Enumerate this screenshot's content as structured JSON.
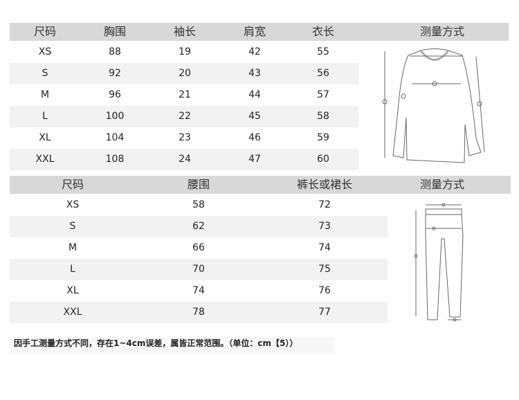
{
  "tops": {
    "headers": [
      "尺码",
      "胸围",
      "袖长",
      "肩宽",
      "衣长",
      "测量方式"
    ],
    "rows": [
      [
        "XS",
        "88",
        "19",
        "42",
        "55"
      ],
      [
        "S",
        "92",
        "20",
        "43",
        "56"
      ],
      [
        "M",
        "96",
        "21",
        "44",
        "57"
      ],
      [
        "L",
        "100",
        "22",
        "45",
        "58"
      ],
      [
        "XL",
        "104",
        "23",
        "46",
        "59"
      ],
      [
        "XXL",
        "108",
        "24",
        "47",
        "60"
      ]
    ],
    "diagram_icon": "shirt-measurement-diagram"
  },
  "bottoms": {
    "headers": [
      "尺码",
      "腰围",
      "裤长或裙长",
      "测量方式"
    ],
    "rows": [
      [
        "XS",
        "58",
        "72"
      ],
      [
        "S",
        "62",
        "73"
      ],
      [
        "M",
        "66",
        "74"
      ],
      [
        "L",
        "70",
        "75"
      ],
      [
        "XL",
        "74",
        "76"
      ],
      [
        "XXL",
        "78",
        "77"
      ]
    ],
    "diagram_icon": "pants-measurement-diagram"
  },
  "note": "因手工测量方式不同，存在1~4cm误差，属皆正常范围。（单位：cm【5））",
  "colors": {
    "header_bg": "#d8d8d8",
    "stripe_bg": "#f2f2f2"
  }
}
